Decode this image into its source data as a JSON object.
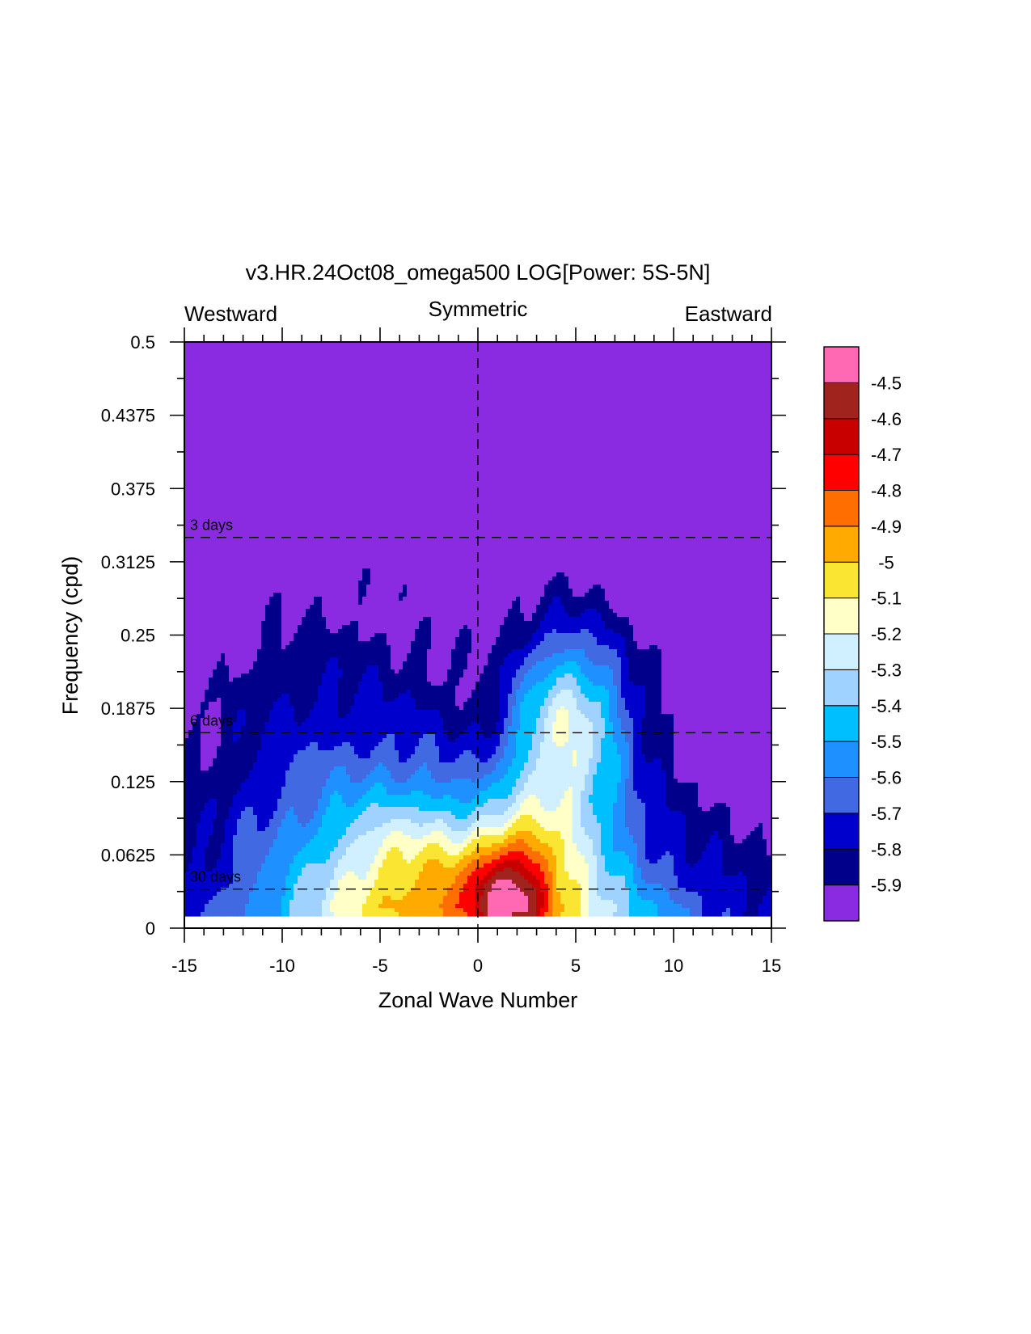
{
  "chart_data": {
    "type": "heatmap",
    "title": "v3.HR.24Oct08_omega500 LOG[Power: 5S-5N]",
    "xlabel": "Zonal Wave Number",
    "ylabel": "Frequency (cpd)",
    "region_labels": {
      "left": "Westward",
      "center": "Symmetric",
      "right": "Eastward"
    },
    "xlim": [
      -15,
      15
    ],
    "ylim": [
      0,
      0.5
    ],
    "x_ticks": [
      -15,
      -10,
      -5,
      0,
      5,
      10,
      15
    ],
    "x_tick_labels": [
      "-15",
      "-10",
      "-5",
      "0",
      "5",
      "10",
      "15"
    ],
    "y_ticks": [
      0,
      0.0625,
      0.125,
      0.1875,
      0.25,
      0.3125,
      0.375,
      0.4375,
      0.5
    ],
    "y_tick_labels": [
      "0",
      "0.0625",
      "0.125",
      "0.1875",
      "0.25",
      "0.3125",
      "0.375",
      "0.4375",
      "0.5"
    ],
    "period_lines": [
      {
        "label": "3 days",
        "frequency": 0.3333
      },
      {
        "label": "6 days",
        "frequency": 0.1667
      },
      {
        "label": "30 days",
        "frequency": 0.0333
      }
    ],
    "colorbar": {
      "levels": [
        -5.9,
        -5.8,
        -5.7,
        -5.6,
        -5.5,
        -5.4,
        -5.3,
        -5.2,
        -5.1,
        -5,
        -4.9,
        -4.8,
        -4.7,
        -4.6,
        -4.5
      ],
      "labels": [
        "-5.9",
        "-5.8",
        "-5.7",
        "-5.6",
        "-5.5",
        "-5.4",
        "-5.3",
        "-5.2",
        "-5.1",
        "-5",
        "-4.9",
        "-4.8",
        "-4.7",
        "-4.6",
        "-4.5"
      ],
      "colors": [
        "#8a2be2",
        "#00008b",
        "#0000cd",
        "#4169e1",
        "#1e90ff",
        "#00bfff",
        "#a0d2ff",
        "#d0f0ff",
        "#ffffc8",
        "#fae632",
        "#ffaa00",
        "#ff6e00",
        "#ff0000",
        "#c80000",
        "#a0231e",
        "#ff69b4"
      ]
    },
    "grid": false
  }
}
